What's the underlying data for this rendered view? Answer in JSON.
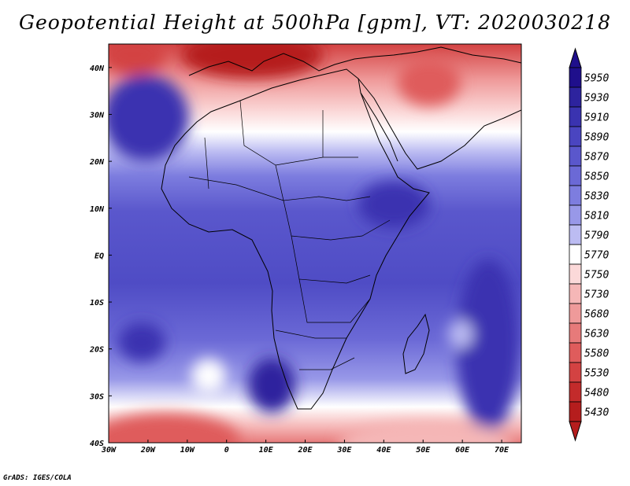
{
  "title": "Geopotential Height at 500hPa [gpm], VT: 2020030218",
  "footer": "GrADS: IGES/COLA",
  "map": {
    "variable": "Geopotential Height",
    "level": "500hPa",
    "units": "gpm",
    "valid_time": "2020030218",
    "lon_range": [
      -30,
      75
    ],
    "lat_range": [
      -40,
      45
    ],
    "lon_ticks": [
      "30W",
      "20W",
      "10W",
      "0",
      "10E",
      "20E",
      "30E",
      "40E",
      "50E",
      "60E",
      "70E"
    ],
    "lat_ticks": [
      "40N",
      "30N",
      "20N",
      "10N",
      "EQ",
      "10S",
      "20S",
      "30S",
      "40S"
    ]
  },
  "colorbar": {
    "levels": [
      "5950",
      "5930",
      "5910",
      "5890",
      "5870",
      "5850",
      "5830",
      "5810",
      "5790",
      "5770",
      "5750",
      "5730",
      "5680",
      "5630",
      "5580",
      "5530",
      "5480",
      "5430"
    ],
    "colors": [
      "#1f0f8c",
      "#2d239e",
      "#3a33b0",
      "#4a45c0",
      "#5a57cc",
      "#6b69d6",
      "#7d7ddf",
      "#9898e8",
      "#bcbcf2",
      "#ffffff",
      "#fbd9d9",
      "#f5b7b7",
      "#ef9a9a",
      "#e77a7a",
      "#df5c5c",
      "#d34242",
      "#c32b2b",
      "#b51d1d"
    ],
    "arrow_top_color": "#1f0f8c",
    "arrow_bottom_color": "#b51d1d"
  }
}
